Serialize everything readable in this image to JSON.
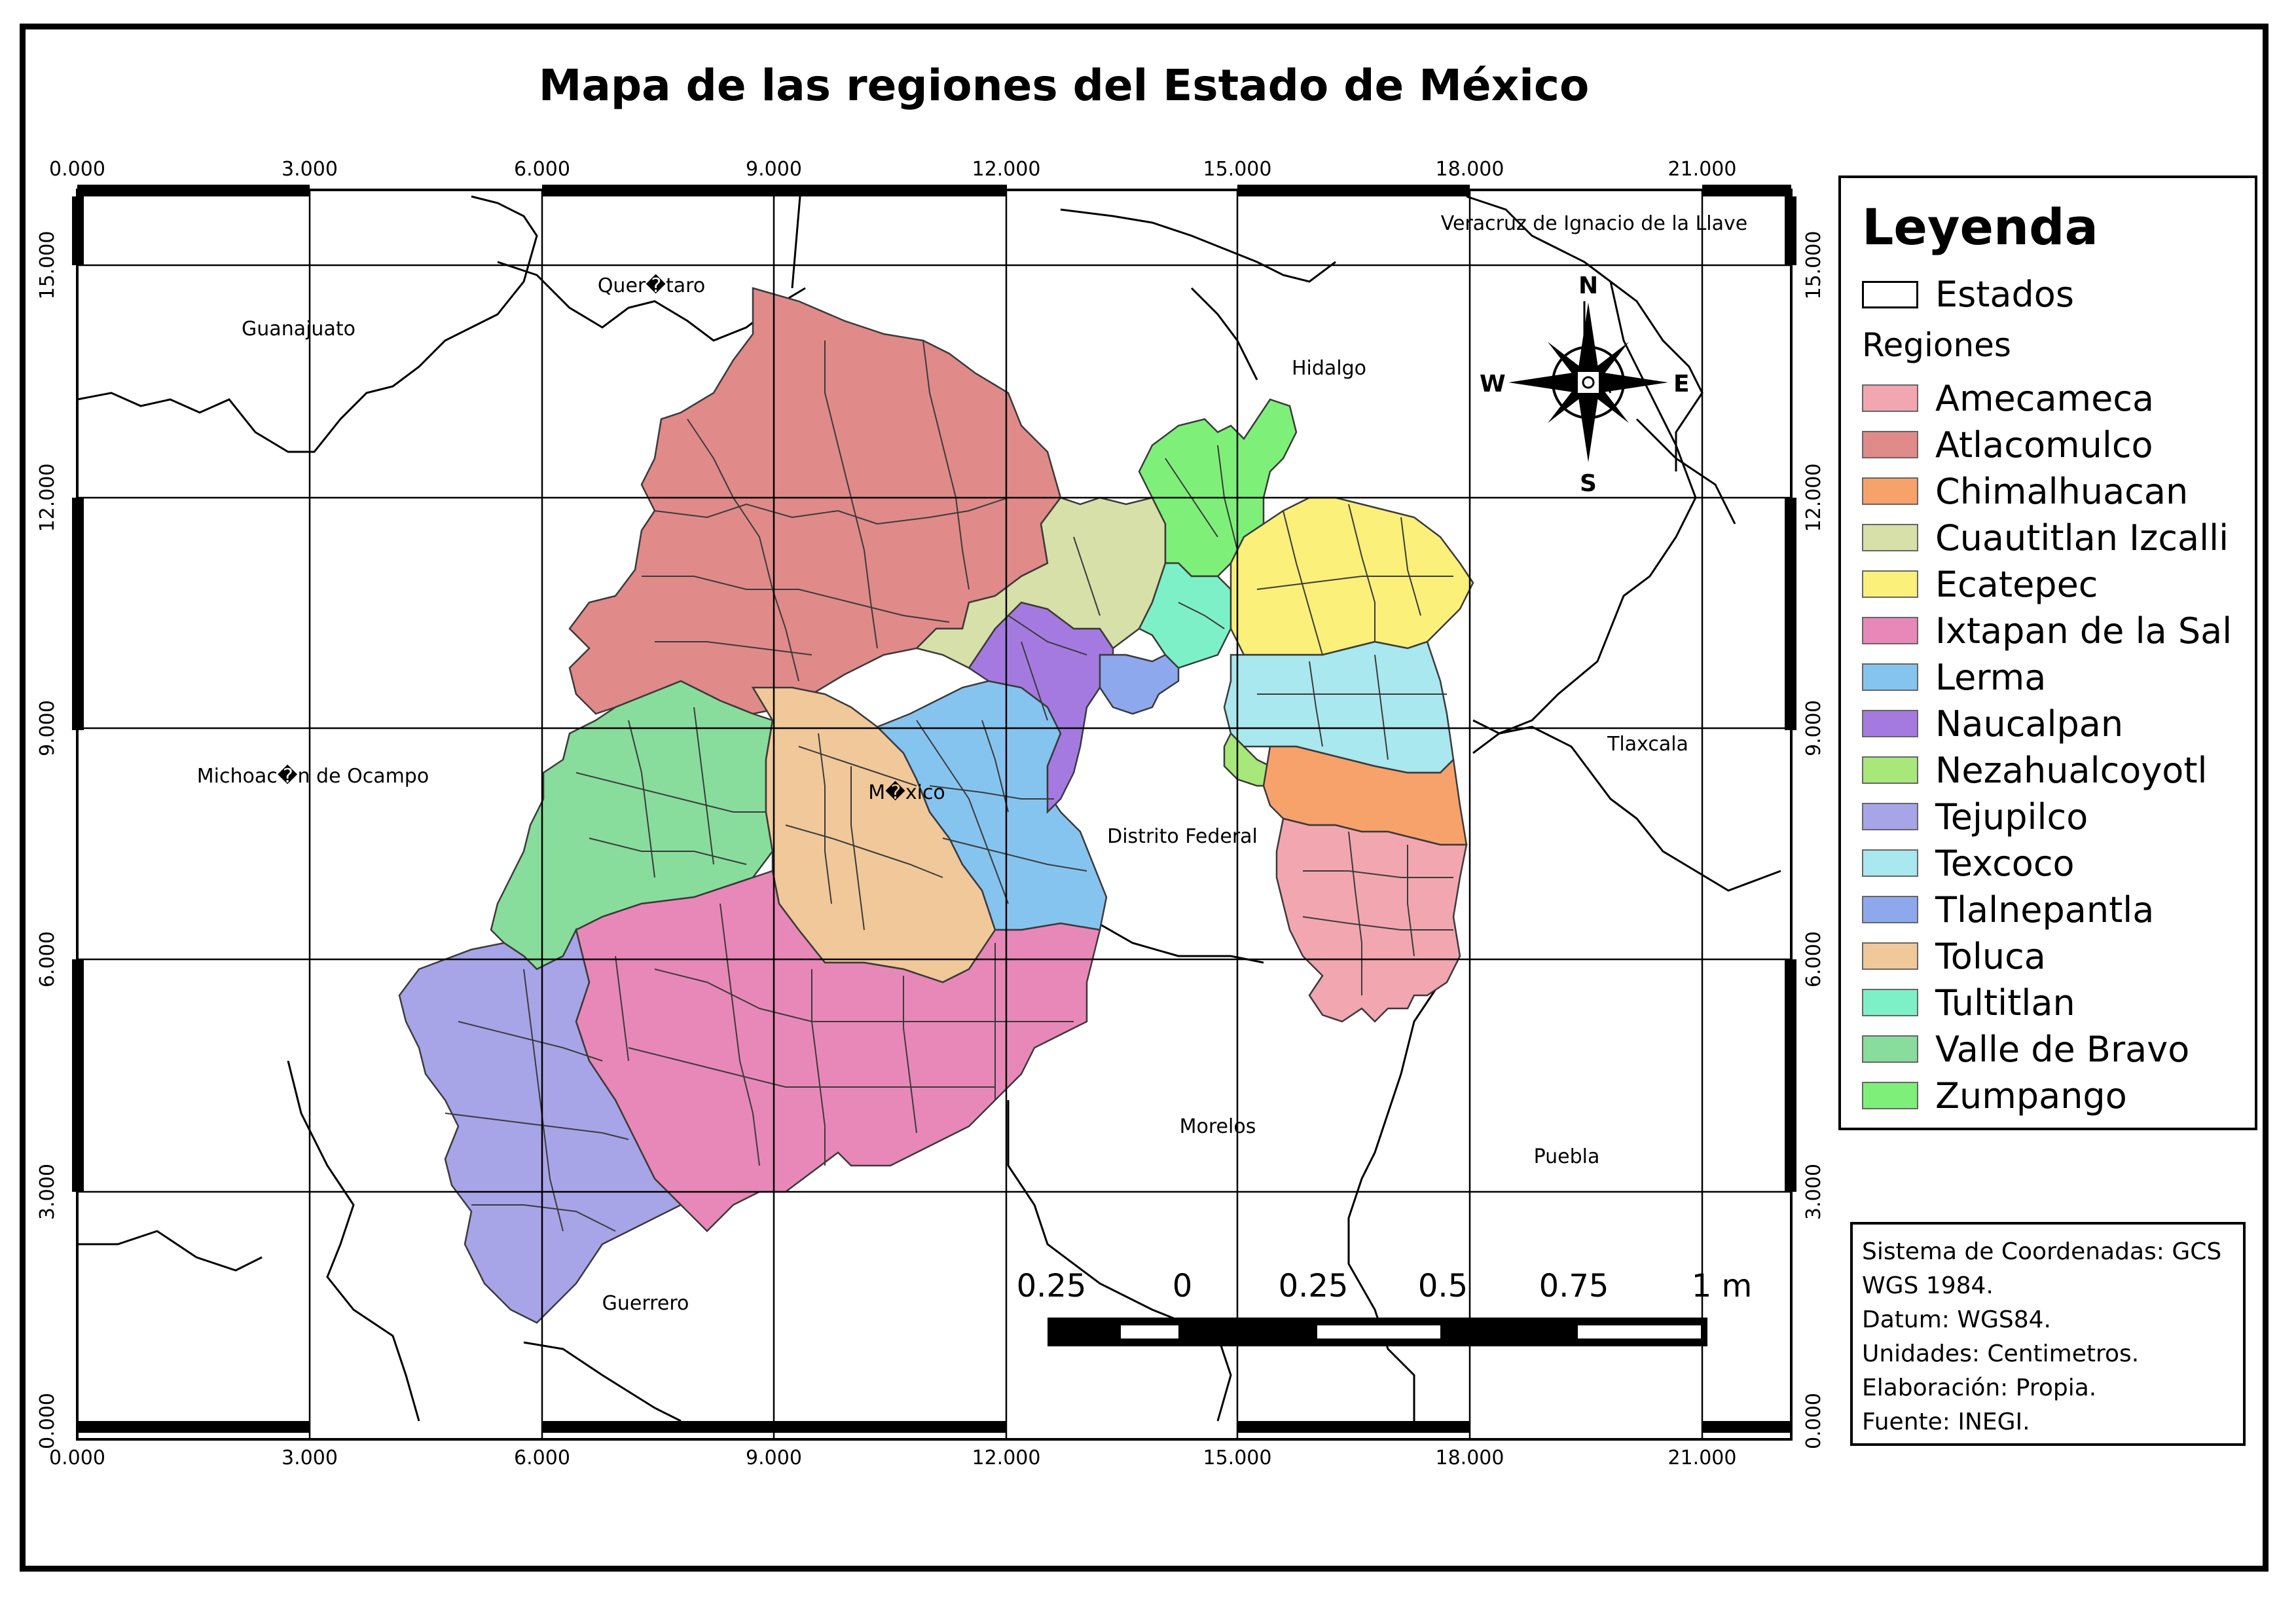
{
  "title": "Mapa de las regiones del Estado de México",
  "grid": {
    "x_ticks": [
      "0.000",
      "3.000",
      "6.000",
      "9.000",
      "12.000",
      "15.000",
      "18.000",
      "21.000"
    ],
    "y_ticks": [
      "15.000",
      "12.000",
      "9.000",
      "6.000",
      "3.000",
      "0.000"
    ]
  },
  "place_labels": {
    "veracruz": "Veracruz de Ignacio de la Llave",
    "queretaro": "Quer�taro",
    "guanajuato": "Guanajuato",
    "hidalgo": "Hidalgo",
    "michoacan": "Michoac�n de Ocampo",
    "mexico": "M�xico",
    "distrito_federal": "Distrito Federal",
    "tlaxcala": "Tlaxcala",
    "morelos": "Morelos",
    "puebla": "Puebla",
    "guerrero": "Guerrero"
  },
  "north_arrow": {
    "n": "N",
    "s": "S",
    "e": "E",
    "w": "W"
  },
  "scale_bar": {
    "labels": [
      "0.25",
      "0",
      "0.25",
      "0.5",
      "0.75",
      "1 m"
    ]
  },
  "legend": {
    "title": "Leyenda",
    "states_label": "Estados",
    "regions_heading": "Regiones",
    "regions": [
      {
        "name": "Amecameca",
        "color": "#f2a6b0"
      },
      {
        "name": "Atlacomulco",
        "color": "#e08a8a"
      },
      {
        "name": "Chimalhuacan",
        "color": "#f7a26b"
      },
      {
        "name": "Cuautitlan Izcalli",
        "color": "#d6e0a8"
      },
      {
        "name": "Ecatepec",
        "color": "#faf07a"
      },
      {
        "name": "Ixtapan de la Sal",
        "color": "#e888b8"
      },
      {
        "name": "Lerma",
        "color": "#86c4f0"
      },
      {
        "name": "Naucalpan",
        "color": "#a57ae0"
      },
      {
        "name": "Nezahualcoyotl",
        "color": "#a8e87a"
      },
      {
        "name": "Tejupilco",
        "color": "#a8a4e8"
      },
      {
        "name": "Texcoco",
        "color": "#a8e8ee"
      },
      {
        "name": "Tlalnepantla",
        "color": "#8ea8ee"
      },
      {
        "name": "Toluca",
        "color": "#f0c89a"
      },
      {
        "name": "Tultitlan",
        "color": "#7ef0c8"
      },
      {
        "name": "Valle de Bravo",
        "color": "#88dd9c"
      },
      {
        "name": "Zumpango",
        "color": "#7ef07a"
      }
    ]
  },
  "info": {
    "line1": "Sistema de Coordenadas: GCS",
    "line2": "WGS 1984.",
    "line3": "Datum: WGS84.",
    "line4": "Unidades: Centimetros.",
    "line5": "Elaboración: Propia.",
    "line6": "Fuente: INEGI."
  }
}
